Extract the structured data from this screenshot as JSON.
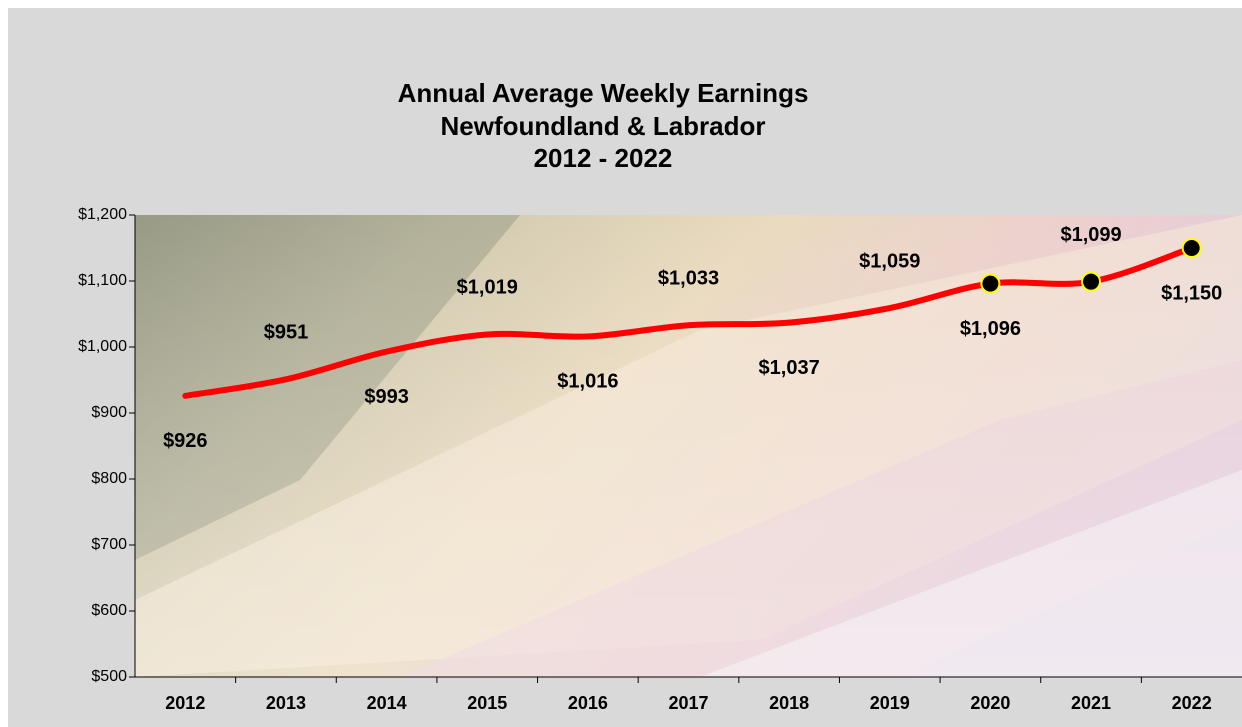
{
  "chart_data": {
    "type": "line",
    "title": [
      "Annual Average Weekly Earnings",
      "Newfoundland & Labrador",
      "2012 - 2022"
    ],
    "categories": [
      "2012",
      "2013",
      "2014",
      "2015",
      "2016",
      "2017",
      "2018",
      "2019",
      "2020",
      "2021",
      "2022"
    ],
    "values": [
      926,
      951,
      993,
      1019,
      1016,
      1033,
      1037,
      1059,
      1096,
      1099,
      1150
    ],
    "value_labels": [
      "$926",
      "$951",
      "$993",
      "$1,019",
      "$1,016",
      "$1,033",
      "$1,037",
      "$1,059",
      "$1,096",
      "$1,099",
      "$1,150"
    ],
    "markers": [
      false,
      false,
      false,
      false,
      false,
      false,
      false,
      false,
      true,
      true,
      true
    ],
    "color": "#ff0000",
    "ylim": [
      500,
      1200
    ],
    "yticks": [
      {
        "value": 500,
        "label": "$500"
      },
      {
        "value": 600,
        "label": "$600"
      },
      {
        "value": 700,
        "label": "$700"
      },
      {
        "value": 800,
        "label": "$800"
      },
      {
        "value": 900,
        "label": "$900"
      },
      {
        "value": 1000,
        "label": "$1,000"
      },
      {
        "value": 1100,
        "label": "$1,100"
      },
      {
        "value": 1200,
        "label": "$1,200"
      }
    ]
  }
}
